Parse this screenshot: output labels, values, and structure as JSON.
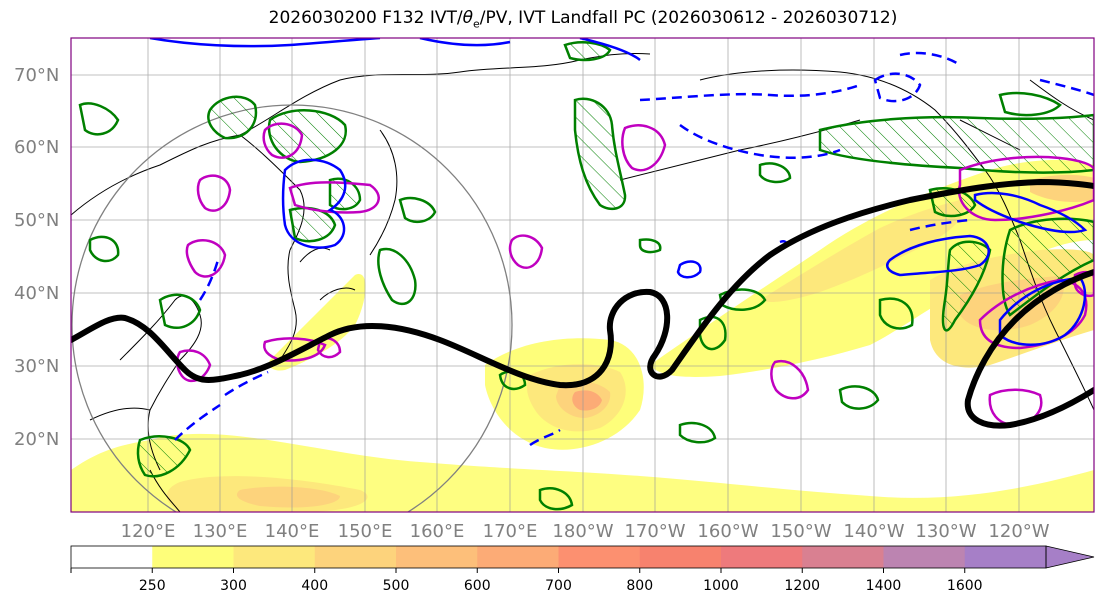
{
  "title": {
    "prefix": "2026030200 F132 IVT/",
    "theta": "θ",
    "sub": "e",
    "suffix": "/PV, IVT Landfall PC (2026030612 - 2026030712)"
  },
  "axes": {
    "lat_labels": [
      "70°N",
      "60°N",
      "50°N",
      "40°N",
      "30°N",
      "20°N"
    ],
    "lon_labels": [
      "120°E",
      "130°E",
      "140°E",
      "150°E",
      "160°E",
      "170°E",
      "180°W",
      "170°W",
      "160°W",
      "150°W",
      "140°W",
      "130°W",
      "120°W"
    ]
  },
  "colorbar": {
    "levels": [
      "250",
      "300",
      "400",
      "500",
      "600",
      "700",
      "800",
      "1000",
      "1200",
      "1400",
      "1600"
    ],
    "colors": [
      "#ffffff",
      "#fefe7a",
      "#fde87c",
      "#fdd37c",
      "#fdbf7a",
      "#fcab76",
      "#fc9070",
      "#f7826e",
      "#ee7a7c",
      "#d98091",
      "#bc84b1",
      "#a67fc7"
    ]
  },
  "legend_colors": {
    "landfall_contour": "#000000",
    "theta_e": "#0000ff",
    "pv_magenta": "#c000c0",
    "pv_green": "#008000"
  }
}
